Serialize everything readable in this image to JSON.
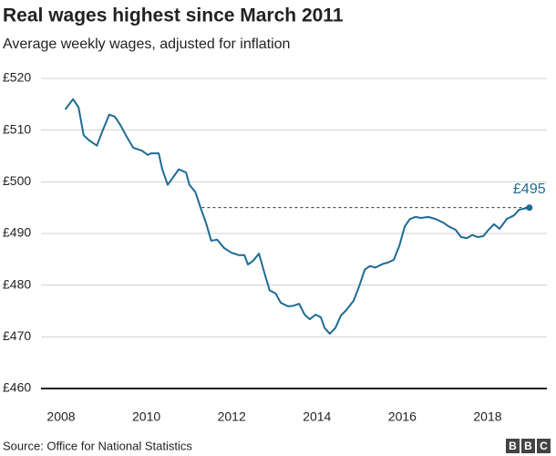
{
  "chart_data": {
    "type": "line",
    "title": "Real wages highest since March 2011",
    "subtitle": "Average weekly wages, adjusted for inflation",
    "source": "Source: Office for National Statistics",
    "logo": [
      "B",
      "B",
      "C"
    ],
    "x": [
      2008.1,
      2008.28,
      2008.41,
      2008.53,
      2008.66,
      2008.84,
      2008.96,
      2009.13,
      2009.26,
      2009.39,
      2009.52,
      2009.69,
      2009.9,
      2010.03,
      2010.11,
      2010.29,
      2010.37,
      2010.5,
      2010.62,
      2010.76,
      2010.93,
      2011.01,
      2011.15,
      2011.27,
      2011.4,
      2011.52,
      2011.66,
      2011.82,
      2011.99,
      2012.17,
      2012.3,
      2012.38,
      2012.5,
      2012.64,
      2012.77,
      2012.89,
      2013.03,
      2013.15,
      2013.32,
      2013.44,
      2013.58,
      2013.71,
      2013.83,
      2013.97,
      2014.09,
      2014.18,
      2014.3,
      2014.43,
      2014.56,
      2014.69,
      2014.86,
      2014.99,
      2015.12,
      2015.24,
      2015.37,
      2015.54,
      2015.67,
      2015.8,
      2015.93,
      2016.06,
      2016.18,
      2016.31,
      2016.44,
      2016.61,
      2016.78,
      2016.96,
      2017.08,
      2017.25,
      2017.38,
      2017.51,
      2017.64,
      2017.77,
      2017.9,
      2018.02,
      2018.15,
      2018.28,
      2018.45,
      2018.62,
      2018.74,
      2018.98
    ],
    "series": [
      {
        "color": "#1e6b93",
        "values": [
          514,
          516,
          514.4,
          509,
          508,
          507,
          509.6,
          513,
          512.6,
          511,
          509,
          506.6,
          506,
          505.2,
          505.5,
          505.5,
          502.5,
          499.4,
          500.8,
          502.4,
          501.8,
          499.4,
          498,
          495,
          492,
          488.6,
          488.8,
          487.2,
          486.3,
          485.8,
          485.8,
          484,
          484.7,
          486.1,
          482.3,
          479,
          478.4,
          476.6,
          475.9,
          476,
          476.4,
          474.3,
          473.4,
          474.3,
          473.8,
          471.7,
          470.6,
          471.7,
          474.1,
          475.2,
          477,
          479.8,
          483,
          483.7,
          483.4,
          484.1,
          484.4,
          484.9,
          487.6,
          491.4,
          492.8,
          493.2,
          493,
          493.2,
          492.8,
          492.1,
          491.4,
          490.7,
          489.3,
          489.1,
          489.7,
          489.3,
          489.5,
          490.7,
          491.8,
          490.9,
          492.8,
          493.5,
          494.6,
          495
        ]
      }
    ],
    "reference_line": {
      "label": "£495",
      "value": 495,
      "x_start": 2011.3,
      "color": "#1e6b93"
    },
    "xlim": [
      2007.53,
      2019.39
    ],
    "xticks": [
      2008,
      2010,
      2012,
      2014,
      2016,
      2018
    ],
    "ylim": [
      460,
      520
    ],
    "yticks": [
      {
        "value": 460,
        "label": "£460"
      },
      {
        "value": 470,
        "label": "£470"
      },
      {
        "value": 480,
        "label": "£480"
      },
      {
        "value": 490,
        "label": "£490"
      },
      {
        "value": 500,
        "label": "£500"
      },
      {
        "value": 510,
        "label": "£510"
      },
      {
        "value": 520,
        "label": "£520"
      }
    ],
    "grid": true
  }
}
